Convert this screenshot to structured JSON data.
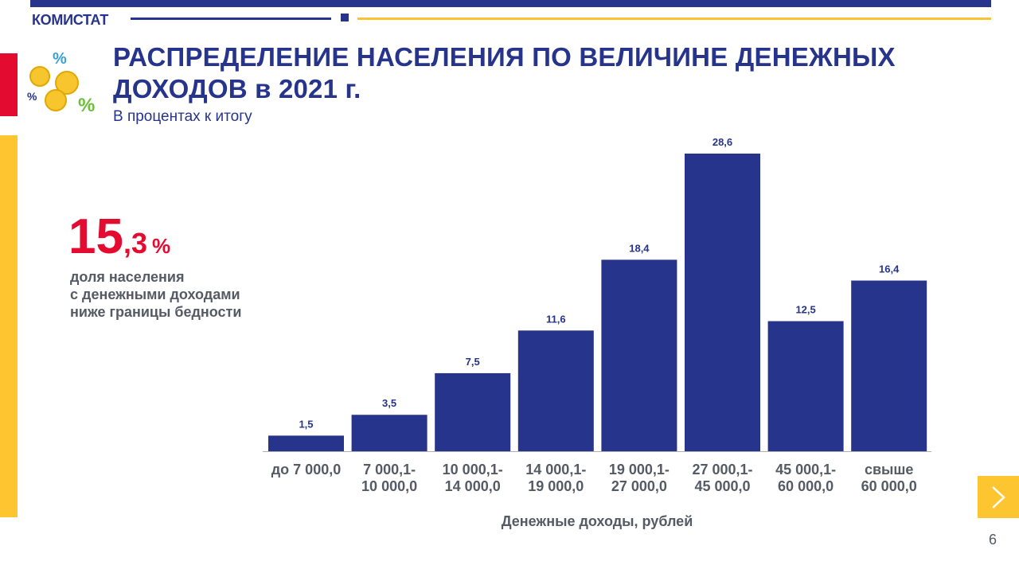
{
  "header": {
    "brand": "КОМИСТАТ"
  },
  "title": "РАСПРЕДЕЛЕНИЕ НАСЕЛЕНИЯ ПО ВЕЛИЧИНЕ ДЕНЕЖНЫХ ДОХОДОВ в 2021 г.",
  "subtitle": "В процентах  к итогу",
  "kpi": {
    "value_int": "15",
    "value_frac": ",3",
    "unit": "%",
    "desc_lines": [
      "доля населения",
      "с денежными доходами",
      "ниже границы бедности"
    ]
  },
  "colors": {
    "accent": "#27348b",
    "red": "#e30b30",
    "yellow": "#fdc530",
    "gray_text": "#555a64"
  },
  "icons": {
    "decor": "coins-percent-icon",
    "next": "chevron-right-icon"
  },
  "page_number": "6",
  "chart_data": {
    "type": "bar",
    "categories": [
      [
        "до 7 000,0"
      ],
      [
        "7 000,1-",
        "10 000,0"
      ],
      [
        "10 000,1-",
        "14 000,0"
      ],
      [
        "14 000,1-",
        "19 000,0"
      ],
      [
        "19 000,1-",
        "27 000,0"
      ],
      [
        "27 000,1-",
        "45 000,0"
      ],
      [
        "45 000,1-",
        "60 000,0"
      ],
      [
        "свыше",
        "60 000,0"
      ]
    ],
    "values": [
      1.5,
      3.5,
      7.5,
      11.6,
      18.4,
      28.6,
      12.5,
      16.4
    ],
    "value_labels": [
      "1,5",
      "3,5",
      "7,5",
      "11,6",
      "18,4",
      "28,6",
      "12,5",
      "16,4"
    ],
    "xlabel": "Денежные доходы, рублей",
    "ylabel": "",
    "ylim": [
      0,
      28.6
    ],
    "grid": false,
    "color": "#27348b"
  }
}
